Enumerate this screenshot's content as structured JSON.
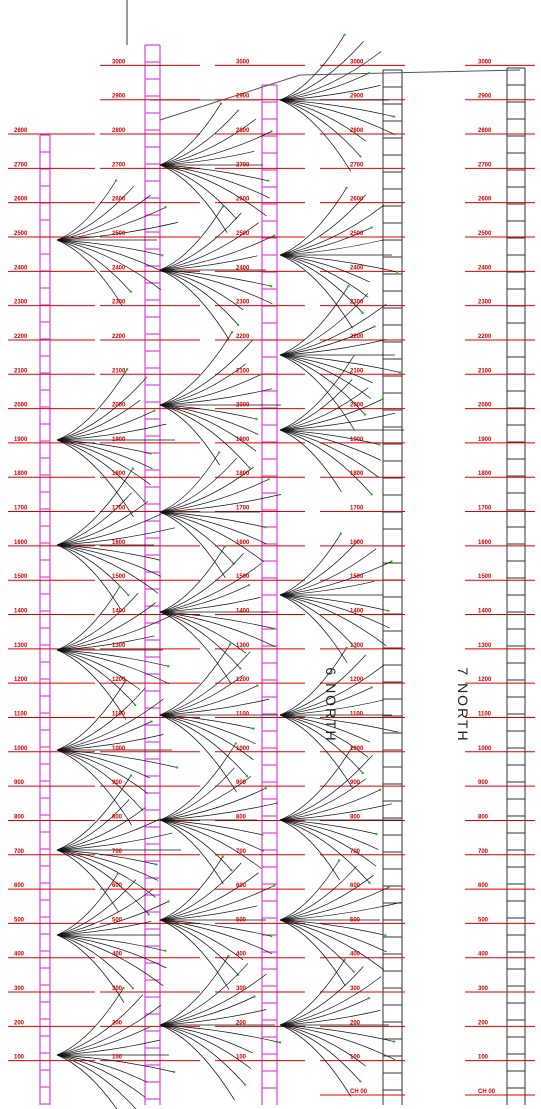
{
  "drawing": {
    "panel_labels": [
      "6 NORTH",
      "7 NORTH"
    ],
    "chainage_columns": [
      {
        "labels": [
          "100",
          "200",
          "300",
          "400",
          "500",
          "600",
          "700",
          "800",
          "900",
          "1000",
          "1100",
          "1200",
          "1300",
          "1400",
          "1500",
          "1600",
          "1700",
          "1800",
          "1900",
          "2000",
          "2100",
          "2200",
          "2300",
          "2400",
          "2500",
          "2600",
          "2700",
          "2800"
        ]
      },
      {
        "labels": [
          "100",
          "200",
          "300",
          "400",
          "500",
          "600",
          "700",
          "800",
          "900",
          "1000",
          "1100",
          "1200",
          "1300",
          "1400",
          "1500",
          "1600",
          "1700",
          "1800",
          "1900",
          "2000",
          "2100",
          "2200",
          "2300",
          "2400",
          "2500",
          "2600",
          "2700",
          "2800",
          "2900",
          "3000"
        ]
      },
      {
        "labels": [
          "100",
          "200",
          "300",
          "400",
          "500",
          "600",
          "700",
          "800",
          "900",
          "1000",
          "1100",
          "1200",
          "1300",
          "1400",
          "1500",
          "1600",
          "1700",
          "1800",
          "1900",
          "2000",
          "2100",
          "2200",
          "2300",
          "2400",
          "2500",
          "2600",
          "2700",
          "2800",
          "2900",
          "3000"
        ]
      },
      {
        "labels": [
          "CH 00",
          "100",
          "200",
          "300",
          "400",
          "500",
          "600",
          "700",
          "800",
          "900",
          "1000",
          "1100",
          "1200",
          "1300",
          "1400",
          "1500",
          "1600",
          "1700",
          "1800",
          "1900",
          "2000",
          "2100",
          "2200",
          "2300",
          "2400",
          "2500",
          "2600",
          "2700",
          "2800",
          "2900",
          "3000"
        ]
      },
      {
        "labels": [
          "CH 00",
          "100",
          "200",
          "300",
          "400",
          "500",
          "600",
          "700",
          "800",
          "900",
          "1000",
          "1100",
          "1200",
          "1300",
          "1400",
          "1500",
          "1600",
          "1700",
          "1800",
          "1900",
          "2000",
          "2100",
          "2200",
          "2300",
          "2400",
          "2500",
          "2600",
          "2700",
          "2800",
          "2900",
          "3000"
        ]
      }
    ]
  }
}
